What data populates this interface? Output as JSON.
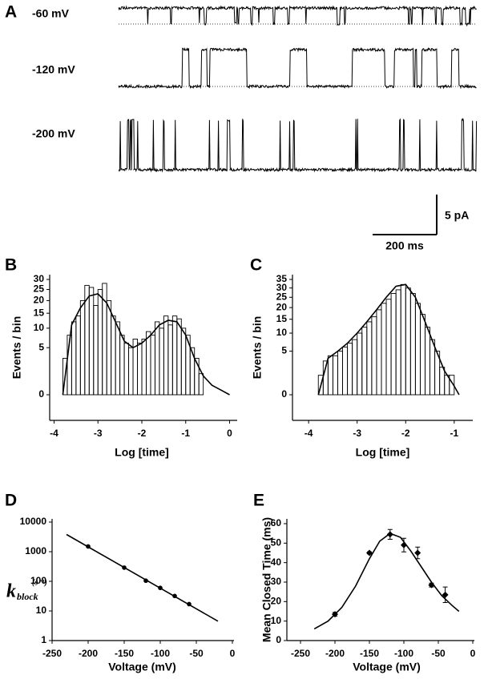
{
  "chart_data": [
    {
      "type": "traces",
      "panel": "A",
      "traces": [
        "-60 mV",
        "-120 mV",
        "-200 mV"
      ],
      "scalebar_y": "5 pA",
      "scalebar_x": "200 ms"
    },
    {
      "type": "histogram",
      "panel": "B",
      "xlabel": "Log [time]",
      "ylabel": "Events / bin",
      "yscale": "sqrt",
      "xlim": [
        -4.1,
        0.1
      ],
      "xticks": [
        -4,
        -3,
        -2,
        -1,
        0
      ],
      "ylim": [
        0,
        30
      ],
      "yticks": [
        0,
        5,
        10,
        15,
        20,
        25,
        30
      ],
      "bins": [
        -3.8,
        -3.7,
        -3.6,
        -3.5,
        -3.4,
        -3.3,
        -3.2,
        -3.1,
        -3.0,
        -2.9,
        -2.8,
        -2.7,
        -2.6,
        -2.5,
        -2.4,
        -2.3,
        -2.2,
        -2.1,
        -2.0,
        -1.9,
        -1.8,
        -1.7,
        -1.6,
        -1.5,
        -1.4,
        -1.3,
        -1.2,
        -1.1,
        -1.0,
        -0.9,
        -0.8,
        -0.7,
        -0.6
      ],
      "counts": [
        3,
        8,
        12,
        14,
        20,
        27,
        26,
        18,
        25,
        28,
        20,
        14,
        12,
        8,
        6,
        5,
        7,
        6,
        7,
        9,
        8,
        12,
        10,
        14,
        11,
        14,
        13,
        10,
        8,
        5,
        3,
        1
      ],
      "fit": {
        "x": [
          -3.8,
          -3.6,
          -3.4,
          -3.2,
          -3.0,
          -2.8,
          -2.6,
          -2.4,
          -2.2,
          -2.0,
          -1.8,
          -1.6,
          -1.4,
          -1.2,
          -1.0,
          -0.8,
          -0.6,
          -0.4,
          -0.2,
          0.0
        ],
        "values": [
          0,
          11,
          17,
          22,
          23,
          19,
          12,
          6.5,
          5,
          6,
          8,
          11,
          12.5,
          12,
          8,
          3,
          0.8,
          0.2,
          0.05,
          0
        ]
      }
    },
    {
      "type": "histogram",
      "panel": "C",
      "xlabel": "Log [time]",
      "ylabel": "Events / bin",
      "yscale": "sqrt",
      "xlim": [
        -4.25,
        -0.7
      ],
      "xticks": [
        -4,
        -3,
        -2,
        -1
      ],
      "ylim": [
        0,
        35
      ],
      "yticks": [
        0,
        5,
        10,
        15,
        20,
        25,
        30,
        35
      ],
      "bins": [
        -3.8,
        -3.7,
        -3.6,
        -3.5,
        -3.4,
        -3.3,
        -3.2,
        -3.1,
        -3.0,
        -2.9,
        -2.8,
        -2.7,
        -2.6,
        -2.5,
        -2.4,
        -2.3,
        -2.2,
        -2.1,
        -2.0,
        -1.9,
        -1.8,
        -1.7,
        -1.6,
        -1.5,
        -1.4,
        -1.3,
        -1.2,
        -1.1,
        -1.0
      ],
      "counts": [
        1,
        3,
        4,
        4,
        5,
        6,
        7,
        8,
        10,
        12,
        14,
        16,
        19,
        22,
        24,
        27,
        29,
        32,
        30,
        27,
        22,
        17,
        12,
        8,
        5,
        2,
        1,
        1
      ],
      "fit": {
        "x": [
          -3.8,
          -3.6,
          -3.4,
          -3.2,
          -3.0,
          -2.8,
          -2.6,
          -2.4,
          -2.2,
          -2.0,
          -1.8,
          -1.6,
          -1.4,
          -1.2,
          -1.0,
          -0.9
        ],
        "values": [
          0,
          3.5,
          5,
          7,
          10,
          14,
          19,
          25,
          31,
          32,
          25,
          14,
          6,
          1.5,
          0.2,
          0
        ]
      }
    },
    {
      "type": "scatter",
      "panel": "D",
      "xlabel": "Voltage (mV)",
      "ylabel_symbol": "k",
      "ylabel_sub": "block",
      "ylabel_unit": "(s⁻¹)",
      "yscale": "log",
      "xlim": [
        -250,
        0
      ],
      "xticks": [
        -250,
        -200,
        -150,
        -100,
        -50,
        0
      ],
      "ylim": [
        1,
        10000
      ],
      "yticks": [
        1,
        10,
        100,
        1000,
        10000
      ],
      "points": {
        "x": [
          -200,
          -150,
          -120,
          -100,
          -80,
          -60
        ],
        "values": [
          1500,
          290,
          105,
          60,
          32,
          17
        ]
      },
      "fit": {
        "x": [
          -230,
          -20
        ],
        "values": [
          3800,
          4.5
        ]
      }
    },
    {
      "type": "scatter",
      "panel": "E",
      "xlabel": "Voltage (mV)",
      "ylabel": "Mean Closed Time (ms)",
      "xlim": [
        -250,
        0
      ],
      "xticks": [
        -250,
        -200,
        -150,
        -100,
        -50,
        0
      ],
      "ylim": [
        0,
        60
      ],
      "yticks": [
        0,
        10,
        20,
        30,
        40,
        50,
        60
      ],
      "points": {
        "x": [
          -200,
          -150,
          -120,
          -100,
          -80,
          -60,
          -40
        ],
        "values": [
          13.5,
          45,
          54.5,
          49,
          45,
          28.5,
          23.5
        ],
        "errors": [
          1,
          0.5,
          2.5,
          3.5,
          3,
          1,
          4
        ]
      },
      "fit": {
        "x": [
          -230,
          -210,
          -190,
          -170,
          -150,
          -135,
          -120,
          -105,
          -90,
          -75,
          -60,
          -45,
          -30,
          -20
        ],
        "values": [
          6,
          10,
          17,
          28,
          42,
          51,
          55,
          53,
          46,
          38,
          30,
          23,
          18,
          15
        ]
      }
    }
  ]
}
